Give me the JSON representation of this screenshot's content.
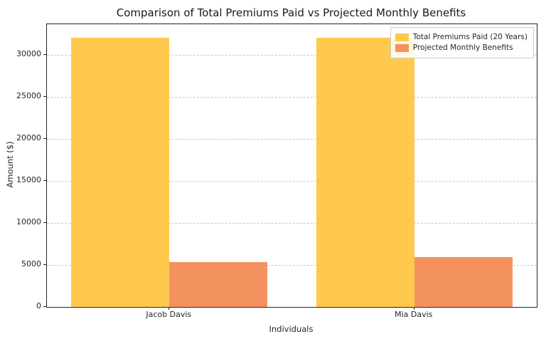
{
  "chart_data": {
    "type": "bar",
    "title": "Comparison of Total Premiums Paid vs Projected Monthly Benefits",
    "xlabel": "Individuals",
    "ylabel": "Amount ($)",
    "categories": [
      "Jacob Davis",
      "Mia Davis"
    ],
    "series": [
      {
        "name": "Total Premiums Paid (20 Years)",
        "color": "#FFC94D",
        "values": [
          32000,
          32000
        ]
      },
      {
        "name": "Projected Monthly Benefits",
        "color": "#F3925F",
        "values": [
          5300,
          5900
        ]
      }
    ],
    "ylim": [
      0,
      33600
    ],
    "yticks": [
      0,
      5000,
      10000,
      15000,
      20000,
      25000,
      30000
    ],
    "grid": "dashed-horizontal",
    "legend_position": "upper-right",
    "bar_width_fraction": 0.4
  }
}
